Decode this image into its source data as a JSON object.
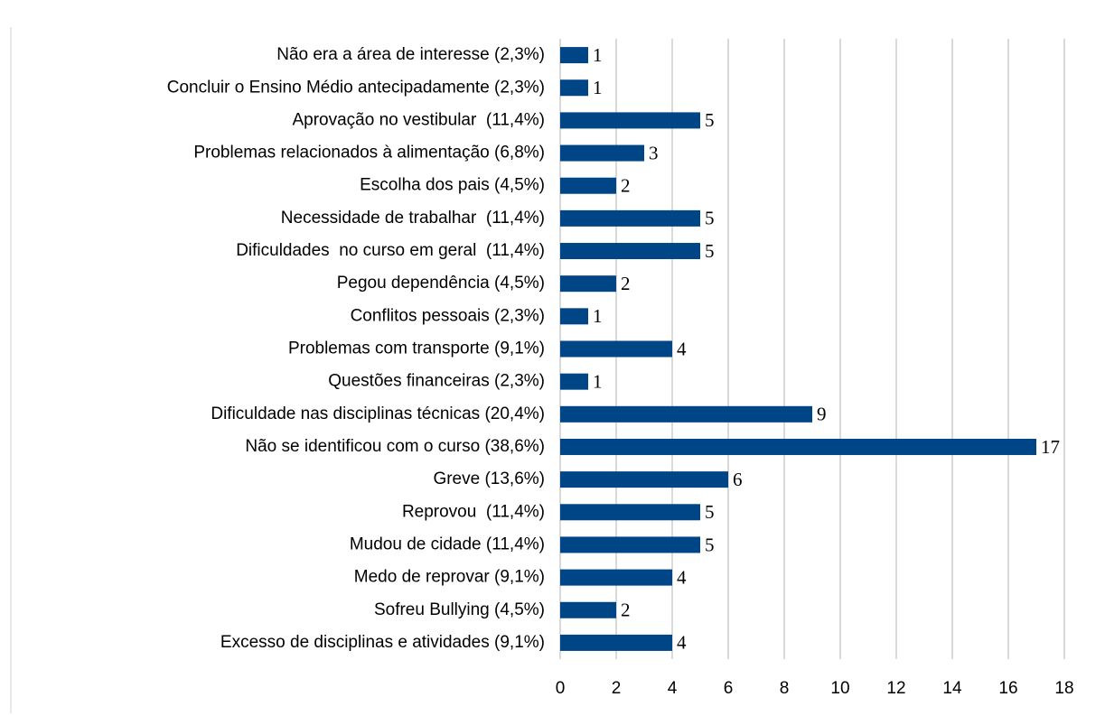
{
  "chart_data": {
    "type": "barh",
    "categories": [
      "Não era a área de interesse (2,3%)",
      "Concluir o Ensino Médio antecipadamente (2,3%)",
      "Aprovação no vestibular  (11,4%)",
      "Problemas relacionados à alimentação (6,8%)",
      "Escolha dos pais (4,5%)",
      "Necessidade de trabalhar  (11,4%)",
      "Dificuldades  no curso em geral  (11,4%)",
      "Pegou dependência (4,5%)",
      "Conflitos pessoais (2,3%)",
      "Problemas com transporte (9,1%)",
      "Questões financeiras (2,3%)",
      "Dificuldade nas disciplinas técnicas (20,4%)",
      "Não se identificou com o curso (38,6%)",
      "Greve (13,6%)",
      "Reprovou  (11,4%)",
      "Mudou de cidade (11,4%)",
      "Medo de reprovar (9,1%)",
      "Sofreu Bullying (4,5%)",
      "Excesso de disciplinas e atividades (9,1%)"
    ],
    "values": [
      1,
      1,
      5,
      3,
      2,
      5,
      5,
      2,
      1,
      4,
      1,
      9,
      17,
      6,
      5,
      5,
      4,
      2,
      4
    ],
    "color": "#004586",
    "xlim": [
      0,
      18
    ],
    "xticks": [
      0,
      2,
      4,
      6,
      8,
      10,
      12,
      14,
      16,
      18
    ],
    "grid": true
  }
}
